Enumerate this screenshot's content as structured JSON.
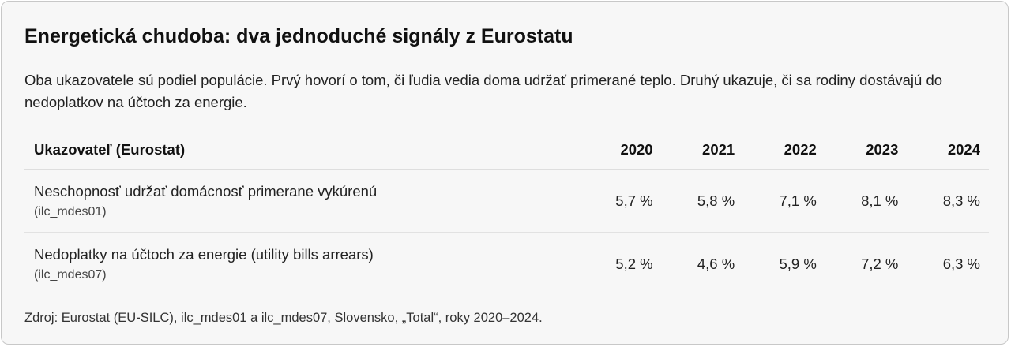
{
  "title": "Energetická chudoba: dva jednoduché signály z Eurostatu",
  "description": "Oba ukazovatele sú podiel populácie. Prvý hovorí o tom, či ľudia vedia doma udržať primerané teplo. Druhý ukazuje, či sa rodiny dostávajú do nedoplatkov na účtoch za energie.",
  "table": {
    "header": [
      "Ukazovateľ (Eurostat)",
      "2020",
      "2021",
      "2022",
      "2023",
      "2024"
    ],
    "rows": [
      {
        "label": "Neschopnosť udržať domácnosť primerane vykúrenú",
        "code": "(ilc_mdes01)",
        "values": [
          "5,7 %",
          "5,8 %",
          "7,1 %",
          "8,1 %",
          "8,3 %"
        ]
      },
      {
        "label": "Nedoplatky na účtoch za energie (utility bills arrears)",
        "code": "(ilc_mdes07)",
        "values": [
          "5,2 %",
          "4,6 %",
          "5,9 %",
          "7,2 %",
          "6,3 %"
        ]
      }
    ]
  },
  "source": "Zdroj: Eurostat (EU-SILC), ilc_mdes01 a ilc_mdes07, Slovensko, „Total“, roky 2020–2024."
}
